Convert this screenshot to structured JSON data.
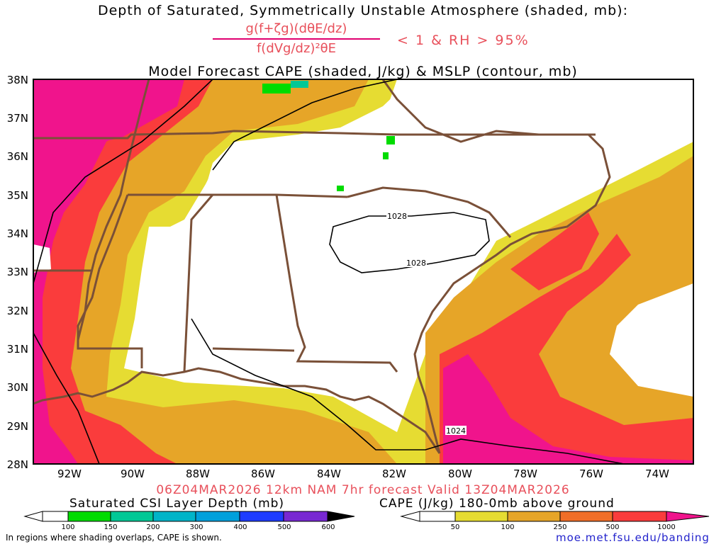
{
  "titles": {
    "line1": "Depth of Saturated, Symmetrically Unstable Atmosphere (shaded, mb):",
    "fraction_numerator": "g(f+ζg)(dθE/dz)",
    "fraction_denominator": "f(dVg/dz)²θE",
    "condition": "< 1 & RH > 95%",
    "line3": "Model Forecast CAPE (shaded, J/kg) & MSLP (contour, mb)"
  },
  "map": {
    "lat_labels": [
      "38N",
      "37N",
      "36N",
      "35N",
      "34N",
      "33N",
      "32N",
      "31N",
      "30N",
      "29N",
      "28N"
    ],
    "lon_labels": [
      "92W",
      "90W",
      "88W",
      "86W",
      "84W",
      "82W",
      "80W",
      "78W",
      "76W",
      "74W"
    ],
    "isobar_labels": [
      "1028",
      "1028",
      "1024"
    ]
  },
  "forecast_line": "06Z04MAR2026 12km NAM 7hr forecast Valid 13Z04MAR2026",
  "legend_csi": {
    "title": "Saturated CSI Layer Depth (mb)",
    "ticks": [
      "100",
      "150",
      "200",
      "300",
      "400",
      "500",
      "600"
    ],
    "colors": [
      "#ffffff",
      "#00dc00",
      "#00c896",
      "#00b4c8",
      "#1e3cff",
      "#7828d2",
      "#000000"
    ]
  },
  "legend_cape": {
    "title": "CAPE (J/kg) 180-0mb above ground",
    "ticks": [
      "50",
      "100",
      "250",
      "500",
      "1000"
    ],
    "colors": [
      "#ffffff",
      "#e6dc32",
      "#e6a528",
      "#f06e28",
      "#fa3c3c",
      "#f0148c"
    ]
  },
  "footer_note": "In regions where shading overlaps, CAPE is shown.",
  "footer_url": "moe.met.fsu.edu/banding"
}
